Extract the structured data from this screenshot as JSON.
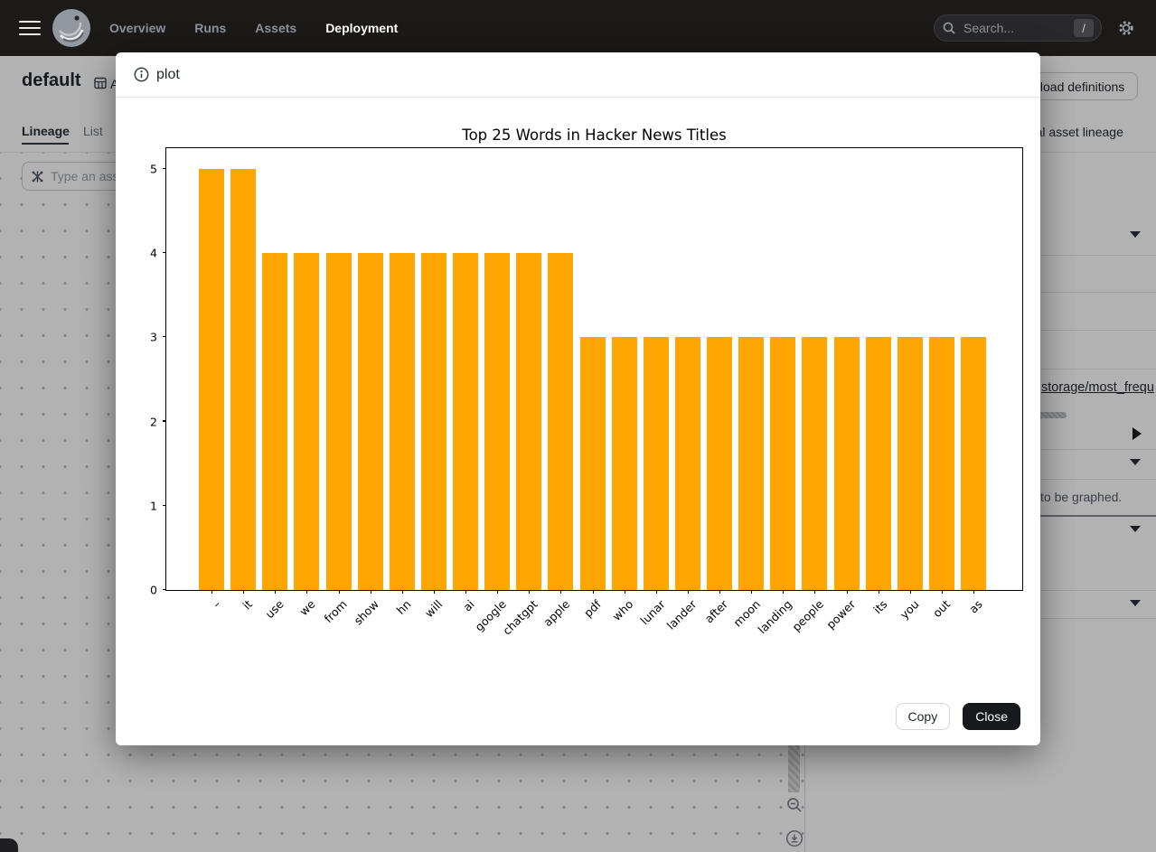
{
  "nav": {
    "items": [
      {
        "label": "Overview",
        "active": false
      },
      {
        "label": "Runs",
        "active": false
      },
      {
        "label": "Assets",
        "active": false
      },
      {
        "label": "Deployment",
        "active": true
      }
    ],
    "search_placeholder": "Search...",
    "search_shortcut": "/"
  },
  "page": {
    "title": "default",
    "title_suffix": "A",
    "tabs": [
      {
        "label": "Lineage",
        "active": true
      },
      {
        "label": "List",
        "active": false
      }
    ],
    "asset_search_placeholder": "Type an asset…",
    "reload_button": "Reload definitions",
    "global_lineage_link": "Global asset lineage",
    "right_panel": {
      "asset_link": "storage/most_frequ",
      "note_text": "to be graphed."
    }
  },
  "modal": {
    "title": "plot",
    "copy_button": "Copy",
    "close_button": "Close"
  },
  "chart_data": {
    "type": "bar",
    "title": "Top 25 Words in Hacker News Titles",
    "categories": [
      "–",
      "it",
      "use",
      "we",
      "from",
      "show",
      "hn",
      "will",
      "ai",
      "google",
      "chatgpt",
      "apple",
      "pdf",
      "who",
      "lunar",
      "lander",
      "after",
      "moon",
      "landing",
      "people",
      "power",
      "its",
      "you",
      "out",
      "as"
    ],
    "values": [
      5,
      5,
      4,
      4,
      4,
      4,
      4,
      4,
      4,
      4,
      4,
      4,
      3,
      3,
      3,
      3,
      3,
      3,
      3,
      3,
      3,
      3,
      3,
      3,
      3
    ],
    "bar_color": "#FFA500",
    "xlabel": "",
    "ylabel": "",
    "yticks": [
      0,
      1,
      2,
      3,
      4,
      5
    ],
    "ylim": [
      0,
      5.27
    ],
    "grid": false,
    "legend": false,
    "x_tick_rotation": 45
  }
}
